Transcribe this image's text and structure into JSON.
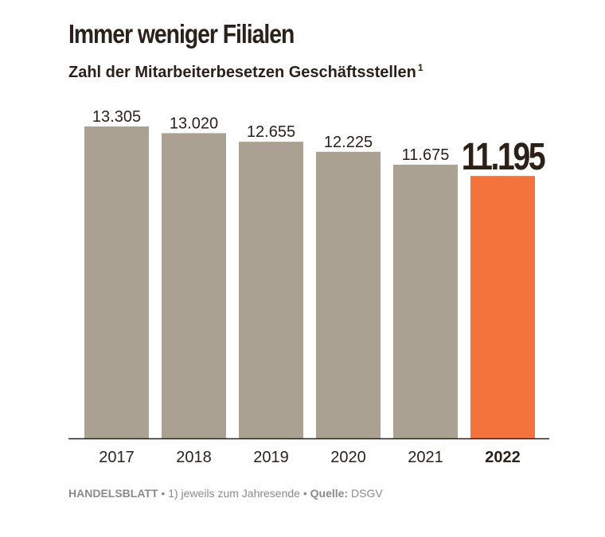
{
  "header": {
    "title": "Immer weniger Filialen",
    "subtitle": "Zahl der Mitarbeiterbesetzen Geschäftsstellen",
    "subtitle_note": "1"
  },
  "footer": {
    "publisher": "HANDELSBLATT",
    "bullet": "•",
    "note": "1) jeweils zum Jahresende",
    "source_label": "Quelle:",
    "source": "DSGV"
  },
  "colors": {
    "bar": "#aaa193",
    "highlight": "#f4733a",
    "text": "#2b2118",
    "axis": "#2b2118"
  },
  "chart_data": {
    "type": "bar",
    "categories": [
      "2017",
      "2018",
      "2019",
      "2020",
      "2021",
      "2022"
    ],
    "values": [
      13305,
      13020,
      12655,
      12225,
      11675,
      11195
    ],
    "value_labels": [
      "13.305",
      "13.020",
      "12.655",
      "12.225",
      "11.675",
      "11.195"
    ],
    "highlight_index": 5,
    "ylim": [
      0,
      13305
    ],
    "grid": false,
    "legend": "none",
    "title": "Immer weniger Filialen",
    "subtitle": "Zahl der Mitarbeiterbesetzen Geschäftsstellen",
    "xlabel": "",
    "ylabel": ""
  }
}
